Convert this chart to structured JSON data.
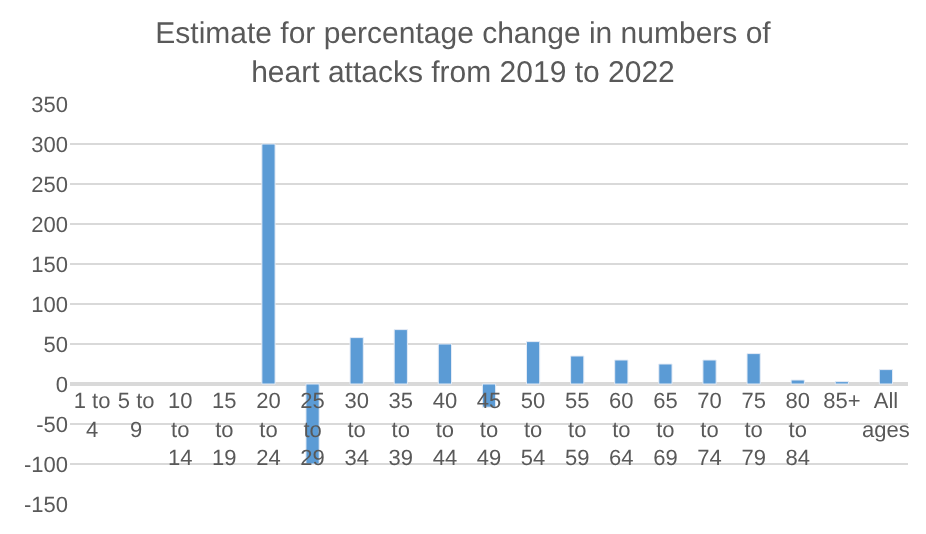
{
  "chart_data": {
    "type": "bar",
    "title": "Estimate for percentage change in numbers of heart attacks from 2019 to 2022",
    "categories": [
      "1 to 4",
      "5 to 9",
      "10 to 14",
      "15 to 19",
      "20 to 24",
      "25 to 29",
      "30 to 34",
      "35 to 39",
      "40 to 44",
      "45 to 49",
      "50 to 54",
      "55 to 59",
      "60 to 64",
      "65 to 69",
      "70 to 74",
      "75 to 79",
      "80 to 84",
      "85+",
      "All ages"
    ],
    "values": [
      null,
      null,
      null,
      null,
      300,
      -100,
      58,
      68,
      50,
      -29,
      53,
      35,
      30,
      25,
      30,
      38,
      5,
      3,
      18
    ],
    "color": "#5b9bd5",
    "ylim": [
      -150,
      350
    ],
    "yticks": [
      -150,
      -100,
      -50,
      0,
      50,
      100,
      150,
      200,
      250,
      300,
      350
    ],
    "grid": "y"
  }
}
